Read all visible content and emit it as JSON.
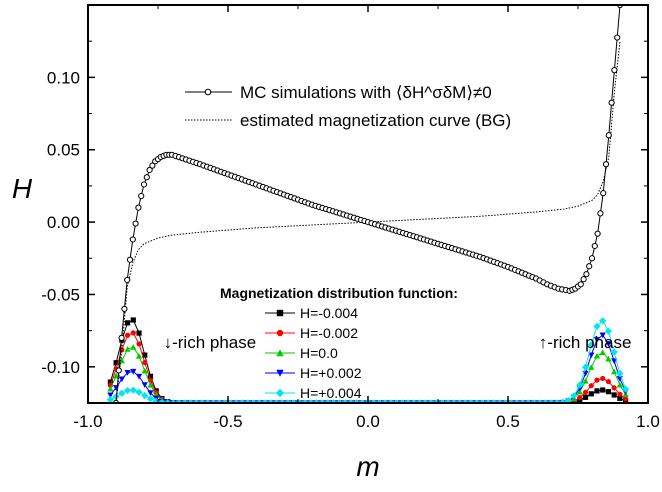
{
  "chart_data": {
    "type": "line",
    "xlabel": "m",
    "ylabel": "H",
    "xlim": [
      -1.0,
      1.0
    ],
    "ylim": [
      -0.125,
      0.15
    ],
    "x_ticks": [
      "-1.0",
      "-0.5",
      "0.0",
      "0.5",
      "1.0"
    ],
    "y_ticks": [
      "-0.10",
      "-0.05",
      "0.00",
      "0.05",
      "0.10"
    ],
    "x_tick_values": [
      -1.0,
      -0.5,
      0.0,
      0.5,
      1.0
    ],
    "y_tick_values": [
      -0.1,
      -0.05,
      0.0,
      0.05,
      0.1
    ],
    "grid": false,
    "legend": {
      "placement": "top-center",
      "entries": [
        {
          "label": "MC simulations with ⟨δH^σδM⟩≠0",
          "style": "open-circle-line",
          "color": "#000000"
        },
        {
          "label": "estimated magnetization curve (BG)",
          "style": "dotted",
          "color": "#000000"
        }
      ]
    },
    "series": [
      {
        "name": "MC simulations with ⟨δH^σδM⟩≠0",
        "color": "#000000",
        "marker": "open-circle",
        "x": [
          -0.9,
          -0.88,
          -0.86,
          -0.84,
          -0.82,
          -0.8,
          -0.78,
          -0.76,
          -0.74,
          -0.72,
          -0.7,
          -0.6,
          -0.5,
          -0.4,
          -0.3,
          -0.2,
          -0.1,
          0.0,
          0.1,
          0.2,
          0.3,
          0.4,
          0.5,
          0.6,
          0.64,
          0.68,
          0.72,
          0.74,
          0.76,
          0.78,
          0.8,
          0.82,
          0.84,
          0.86,
          0.88,
          0.9
        ],
        "y": [
          -0.125,
          -0.08,
          -0.04,
          -0.012,
          0.01,
          0.026,
          0.036,
          0.042,
          0.045,
          0.0465,
          0.0465,
          0.04,
          0.033,
          0.026,
          0.019,
          0.012,
          0.006,
          0.0,
          -0.006,
          -0.012,
          -0.018,
          -0.024,
          -0.031,
          -0.039,
          -0.043,
          -0.046,
          -0.0475,
          -0.046,
          -0.043,
          -0.036,
          -0.025,
          -0.008,
          0.02,
          0.06,
          0.105,
          0.15
        ]
      },
      {
        "name": "estimated magnetization curve (BG)",
        "color": "#000000",
        "marker": "dotted",
        "x": [
          -0.9,
          -0.88,
          -0.86,
          -0.84,
          -0.82,
          -0.8,
          -0.75,
          -0.7,
          -0.6,
          -0.4,
          -0.2,
          0.0,
          0.2,
          0.4,
          0.6,
          0.7,
          0.75,
          0.8,
          0.82,
          0.84,
          0.86,
          0.88,
          0.9
        ],
        "y": [
          -0.125,
          -0.09,
          -0.045,
          -0.028,
          -0.019,
          -0.015,
          -0.011,
          -0.009,
          -0.007,
          -0.004,
          -0.002,
          0.0,
          0.002,
          0.004,
          0.007,
          0.009,
          0.011,
          0.015,
          0.019,
          0.028,
          0.045,
          0.09,
          0.125
        ]
      }
    ],
    "distribution_legend": {
      "title": "Magnetization distribution function:",
      "entries": [
        {
          "label": "H=-0.004",
          "color": "#000000",
          "marker": "square",
          "peak_left": 0.058,
          "peak_right": 0.009
        },
        {
          "label": "H=-0.002",
          "color": "#ff0000",
          "marker": "circle",
          "peak_left": 0.049,
          "peak_right": 0.017
        },
        {
          "label": "H=0.0",
          "color": "#00cc00",
          "marker": "triangle-up",
          "peak_left": 0.039,
          "peak_right": 0.035
        },
        {
          "label": "H=+0.002",
          "color": "#0000ff",
          "marker": "triangle-down",
          "peak_left": 0.022,
          "peak_right": 0.047
        },
        {
          "label": "H=+0.004",
          "color": "#00e5ee",
          "marker": "diamond",
          "peak_left": 0.009,
          "peak_right": 0.057
        }
      ]
    },
    "distribution_baseline": -0.125,
    "annotations": [
      {
        "text": "↓-rich phase",
        "x": -0.73,
        "y": -0.087
      },
      {
        "text": "↑-rich phase",
        "x": 0.61,
        "y": -0.087
      }
    ]
  }
}
